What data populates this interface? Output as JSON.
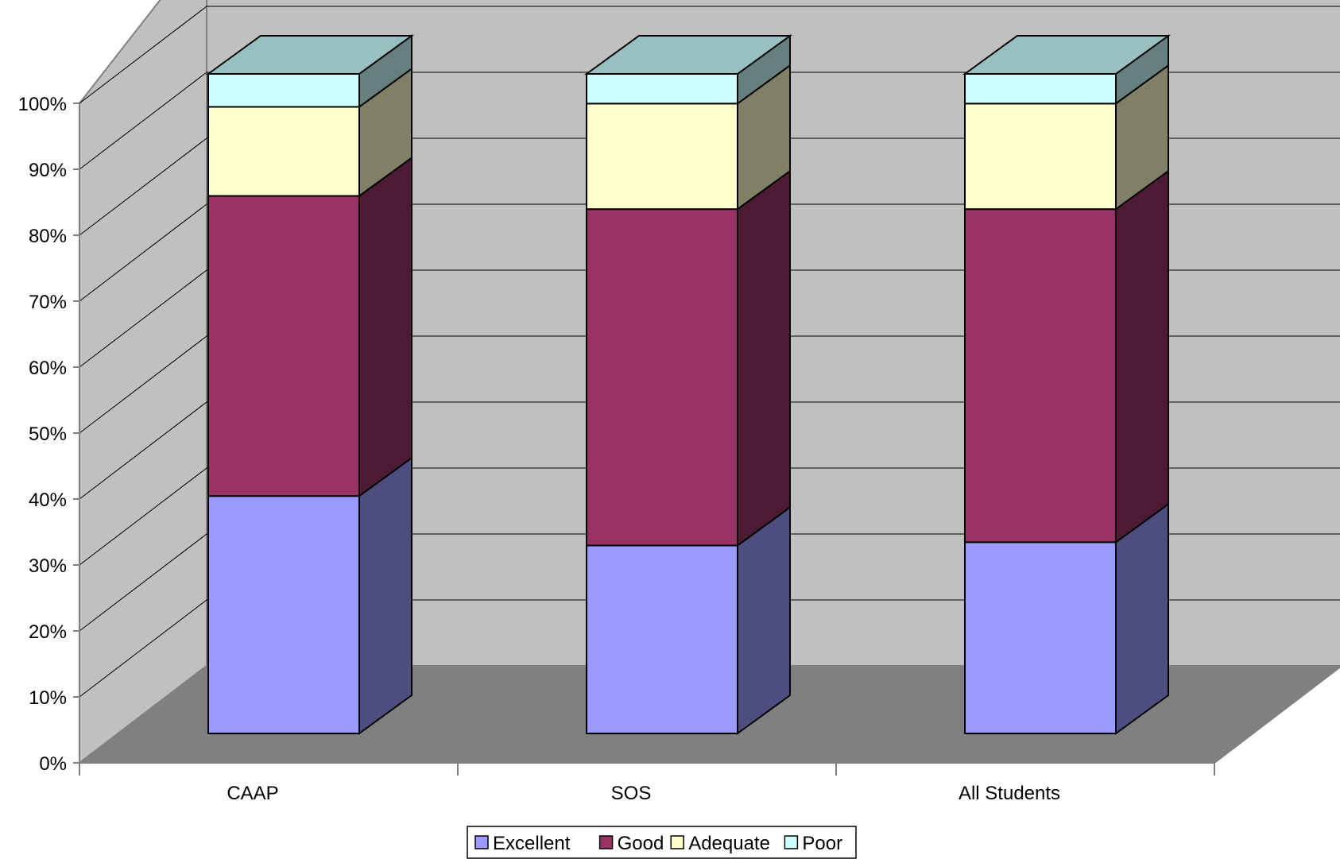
{
  "chart_data": {
    "type": "bar",
    "stacked": true,
    "percent_stacked": true,
    "three_d": true,
    "categories": [
      "CAAP",
      "SOS",
      "All Students"
    ],
    "series": [
      {
        "name": "Excellent",
        "values": [
          36,
          28.5,
          29
        ]
      },
      {
        "name": "Good",
        "values": [
          45.5,
          51,
          50.5
        ]
      },
      {
        "name": "Adequate",
        "values": [
          13.5,
          16,
          16
        ]
      },
      {
        "name": "Poor",
        "values": [
          5,
          4.5,
          4.5
        ]
      }
    ],
    "y_ticks": [
      "0%",
      "10%",
      "20%",
      "30%",
      "40%",
      "50%",
      "60%",
      "70%",
      "80%",
      "90%",
      "100%"
    ],
    "ylim": [
      0,
      100
    ],
    "grid": true,
    "legend_position": "bottom",
    "colors": {
      "Excellent": {
        "front": "#9999ff",
        "side": "#4d4d80",
        "top": "#7a7acc"
      },
      "Good": {
        "front": "#993366",
        "side": "#4d1a33",
        "top": "#7a2952"
      },
      "Adequate": {
        "front": "#ffffcc",
        "side": "#808066",
        "top": "#ccccaa"
      },
      "Poor": {
        "front": "#ccffff",
        "side": "#668080",
        "top": "#99c0c0"
      },
      "wall": "#c0c0c0",
      "floor": "#808080"
    }
  }
}
